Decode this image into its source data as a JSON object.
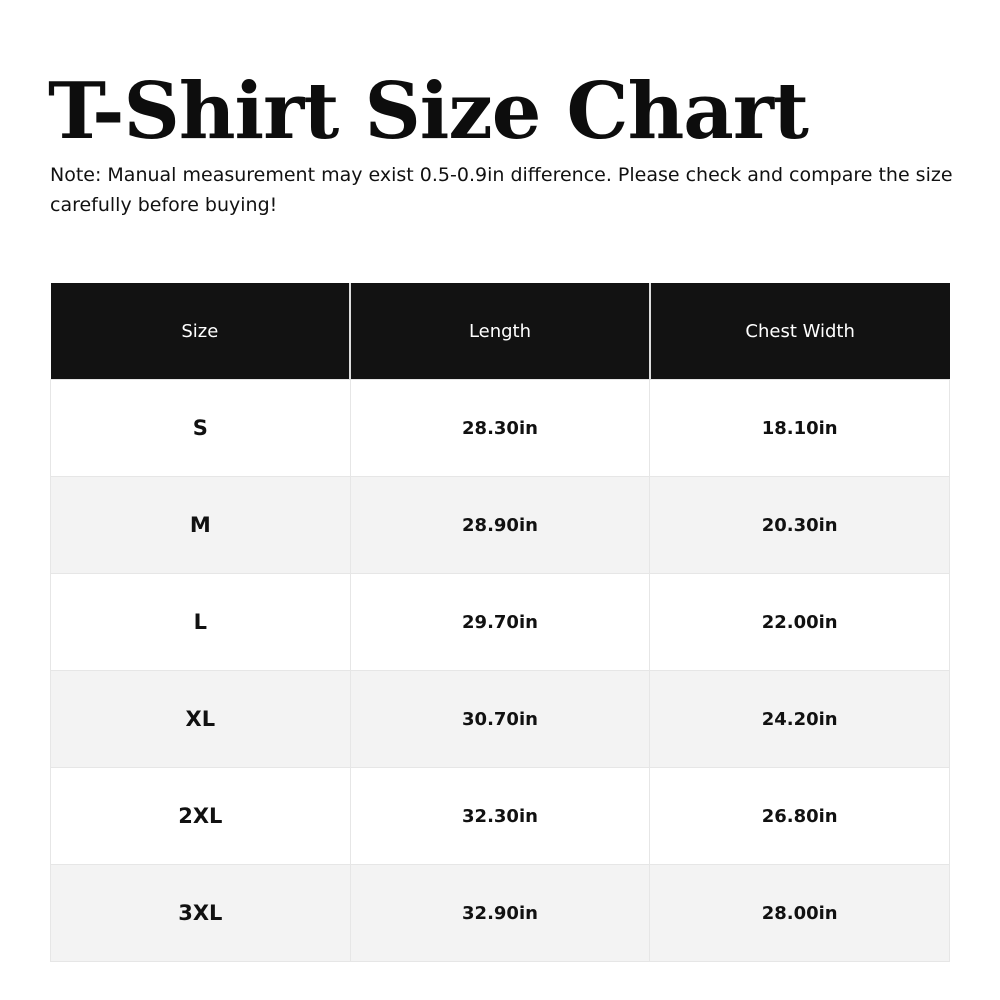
{
  "title": "T-Shirt Size Chart",
  "note": "Note: Manual measurement may exist 0.5-0.9in difference. Please check and compare the size carefully before buying!",
  "table": {
    "headers": [
      "Size",
      "Length",
      "Chest Width"
    ],
    "rows": [
      [
        "S",
        "28.30in",
        "18.10in"
      ],
      [
        "M",
        "28.90in",
        "20.30in"
      ],
      [
        "L",
        "29.70in",
        "22.00in"
      ],
      [
        "XL",
        "30.70in",
        "24.20in"
      ],
      [
        "2XL",
        "32.30in",
        "26.80in"
      ],
      [
        "3XL",
        "32.90in",
        "28.00in"
      ]
    ]
  },
  "colors": {
    "header_bg": "#121212",
    "alt_row_bg": "#f3f3f3"
  }
}
